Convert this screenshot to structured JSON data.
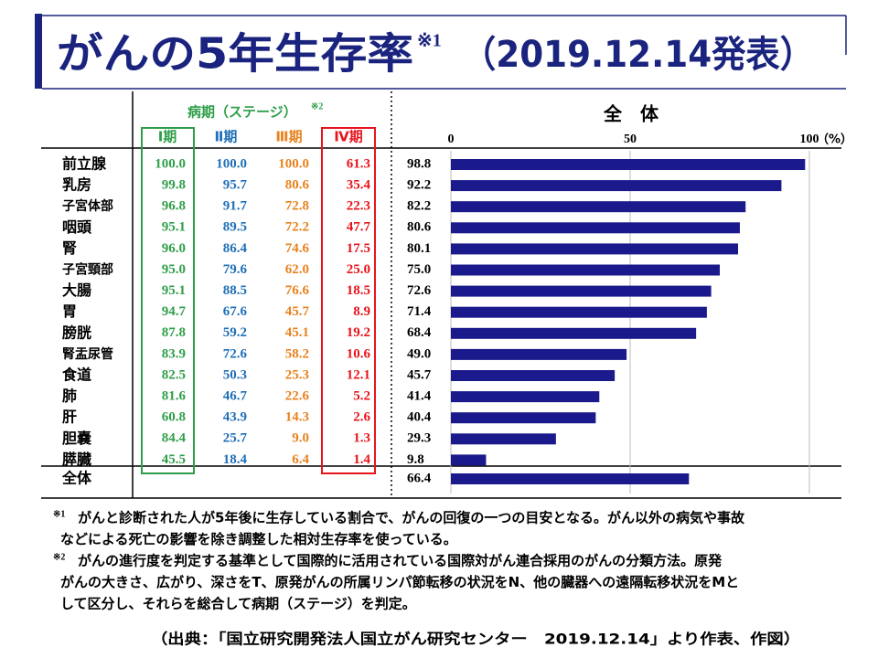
{
  "title": "がんの5年生存率",
  "title_note": "※1",
  "subtitle": "（2019.12.14発表）",
  "table": {
    "header": "病期（ステージ）",
    "header_note": "※2",
    "columns": [
      "Ⅰ期",
      "Ⅱ期",
      "Ⅲ期",
      "Ⅳ期"
    ],
    "colors": [
      "#2e9e48",
      "#1f6fb8",
      "#e8821e",
      "#e8141c"
    ],
    "rows": [
      [
        "100.0",
        "100.0",
        "100.0",
        "61.3"
      ],
      [
        "99.8",
        "95.7",
        "80.6",
        "35.4"
      ],
      [
        "96.8",
        "91.7",
        "72.8",
        "22.3"
      ],
      [
        "95.1",
        "89.5",
        "72.2",
        "47.7"
      ],
      [
        "96.0",
        "86.4",
        "74.6",
        "17.5"
      ],
      [
        "95.0",
        "79.6",
        "62.0",
        "25.0"
      ],
      [
        "95.1",
        "88.5",
        "76.6",
        "18.5"
      ],
      [
        "94.7",
        "67.6",
        "45.7",
        "8.9"
      ],
      [
        "87.8",
        "59.2",
        "45.1",
        "19.2"
      ],
      [
        "83.9",
        "72.6",
        "58.2",
        "10.6"
      ],
      [
        "82.5",
        "50.3",
        "25.3",
        "12.1"
      ],
      [
        "81.6",
        "46.7",
        "22.6",
        "5.2"
      ],
      [
        "60.8",
        "43.9",
        "14.3",
        "2.6"
      ],
      [
        "84.4",
        "25.7",
        "9.0",
        "1.3"
      ],
      [
        "45.5",
        "18.4",
        "6.4",
        "1.4"
      ]
    ]
  },
  "chart_data": {
    "type": "bar",
    "orientation": "horizontal",
    "title": "全　体",
    "unit": "（%）",
    "categories": [
      "前立腺",
      "乳房",
      "子宮体部",
      "咽頭",
      "腎",
      "子宮頸部",
      "大腸",
      "胃",
      "膀胱",
      "腎盂尿管",
      "食道",
      "肺",
      "肝",
      "胆嚢",
      "膵臓",
      "全体"
    ],
    "values": [
      98.8,
      92.2,
      82.2,
      80.6,
      80.1,
      75.0,
      72.6,
      71.4,
      68.4,
      49.0,
      45.7,
      41.4,
      40.4,
      29.3,
      9.8,
      66.4
    ],
    "value_labels": [
      "98.8",
      "92.2",
      "82.2",
      "80.6",
      "80.1",
      "75.0",
      "72.6",
      "71.4",
      "68.4",
      "49.0",
      "45.7",
      "41.4",
      "40.4",
      "29.3",
      "9.8",
      "66.4"
    ],
    "color": "#1a1a8c",
    "xlim": [
      0,
      100
    ],
    "xticks": [
      0,
      50,
      100
    ],
    "grid": true
  },
  "footnotes": [
    {
      "marker": "※1",
      "lines": [
        "がんと診断された人が5年後に生存している割合で、がんの回復の一つの目安となる。がん以外の病気や事故",
        "などによる死亡の影響を除き調整した相対生存率を使っている。"
      ]
    },
    {
      "marker": "※2",
      "lines": [
        "がんの進行度を判定する基準として国際的に活用されている国際対がん連合採用のがんの分類方法。原発",
        "がんの大きさ、広がり、深さをT、原発がんの所属リンパ節転移の状況をN、他の臓器への遠隔転移状況をMと",
        "して区分し、それらを総合して病期（ステージ）を判定。"
      ]
    }
  ],
  "source": "（出典：「国立研究開発法人国立がん研究センター　2019.12.14」より作表、作図）"
}
